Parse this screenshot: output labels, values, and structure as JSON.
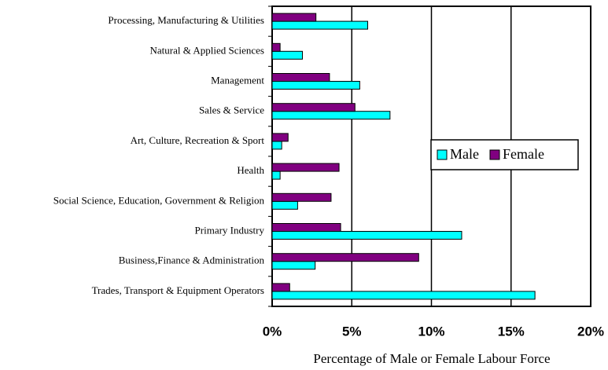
{
  "chart_data": {
    "type": "bar",
    "orientation": "horizontal",
    "x_label": "Percentage of Male or Female Labour Force",
    "categories": [
      "Processing, Manufacturing & Utilities",
      "Natural & Applied Sciences",
      "Management",
      "Sales & Service",
      "Art, Culture, Recreation & Sport",
      "Health",
      "Social Science, Education, Government & Religion",
      "Primary Industry",
      "Business,Finance & Administration",
      "Trades, Transport & Equipment Operators"
    ],
    "series": [
      {
        "name": "Male",
        "color": "#00ffff",
        "values": [
          6.0,
          1.9,
          5.5,
          7.4,
          0.6,
          0.5,
          1.6,
          11.9,
          2.7,
          16.5
        ]
      },
      {
        "name": "Female",
        "color": "#800080",
        "values": [
          2.75,
          0.5,
          3.6,
          5.2,
          1.0,
          4.2,
          3.7,
          4.3,
          9.2,
          1.1
        ]
      }
    ],
    "xlim": [
      0,
      20
    ],
    "xticks": [
      {
        "value": 0,
        "label": "0%"
      },
      {
        "value": 5,
        "label": "5%"
      },
      {
        "value": 10,
        "label": "10%"
      },
      {
        "value": 15,
        "label": "15%"
      },
      {
        "value": 20,
        "label": "20%"
      }
    ],
    "grid": true,
    "legend": "right"
  }
}
